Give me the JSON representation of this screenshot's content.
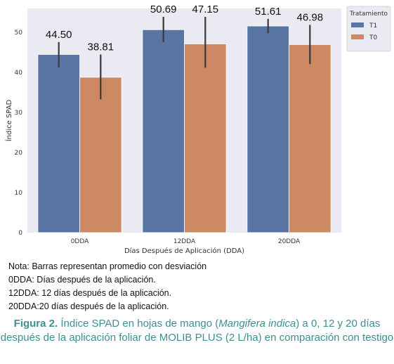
{
  "chart_data": {
    "type": "bar",
    "categories": [
      "0DDA",
      "12DDA",
      "20DDA"
    ],
    "series": [
      {
        "name": "T1",
        "color": "#5975a4",
        "values": [
          44.5,
          50.69,
          51.61
        ],
        "error_low": [
          41.3,
          47.6,
          49.8
        ],
        "error_high": [
          47.6,
          53.9,
          53.4
        ],
        "labels": [
          "44.50",
          "50.69",
          "51.61"
        ]
      },
      {
        "name": "T0",
        "color": "#cc8963",
        "values": [
          38.81,
          47.15,
          46.98
        ],
        "error_low": [
          33.3,
          41.2,
          42.1
        ],
        "error_high": [
          44.5,
          53.9,
          51.9
        ],
        "labels": [
          "38.81",
          "47.15",
          "46.98"
        ]
      }
    ],
    "xlabel": "Días Después de Aplicación (DDA)",
    "ylabel": "Índice SPAD",
    "ylim": [
      0,
      56
    ],
    "yticks": [
      "0",
      "10",
      "20",
      "30",
      "40",
      "50"
    ],
    "legend_title": "Tratamiento",
    "legend_position": "outside-top-right",
    "background": "#eaeaf2",
    "grid": false
  },
  "notes": [
    "Nota: Barras representan promedio con desviación",
    "0DDA: Días después de la aplicación.",
    "12DDA: 12 días después de la aplicación.",
    "20DDA:20 días después de la aplicación."
  ],
  "caption": {
    "label": "Figura 2.",
    "text_before": " Índice SPAD en hojas de mango (",
    "species": "Mangifera indica",
    "text_after": ") a 0, 12 y 20 días después de la aplicación foliar de MOLIB PLUS (2 L/ha) en comparación con testigo"
  }
}
